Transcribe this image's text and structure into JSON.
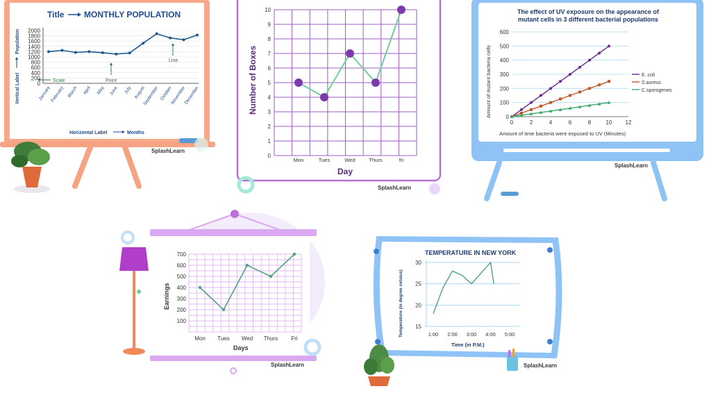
{
  "brand": "SplashLearn",
  "colors": {
    "easel1": "#f5a383",
    "line1": "#1e5a8e",
    "title1": "#1e4a8e",
    "purple": "#7c3aad",
    "green": "#6fcf97",
    "purpleLight": "#d9b3f0",
    "blueFrame": "#8fc3f5",
    "ecoli": "#6a2a90",
    "saureus": "#c0582a",
    "cspor": "#3aaa6a"
  },
  "chart_data": [
    {
      "type": "line",
      "title_label": "Title",
      "title": "MONTHLY POPULATION",
      "xlabel_prefix": "Horizontal Label",
      "xlabel": "Months",
      "ylabel_prefix": "Vertical Label",
      "ylabel": "Population",
      "categories": [
        "January",
        "February",
        "March",
        "April",
        "May",
        "June",
        "July",
        "August",
        "September",
        "October",
        "November",
        "December"
      ],
      "values": [
        1200,
        1250,
        1170,
        1200,
        1160,
        1110,
        1150,
        1520,
        1880,
        1720,
        1650,
        1830
      ],
      "ylim": [
        0,
        2000
      ],
      "yticks": [
        0,
        200,
        400,
        600,
        800,
        1000,
        1200,
        1400,
        1600,
        1800,
        2000
      ],
      "annotations": {
        "scale": "Scale",
        "point": "Point",
        "line": "Line"
      }
    },
    {
      "type": "line",
      "title": "",
      "categories": [
        "Mon",
        "Tues",
        "Wed",
        "Thurs",
        "fri"
      ],
      "values": [
        5,
        4,
        7,
        5,
        10
      ],
      "xlabel": "Day",
      "ylabel": "Number of Boxes",
      "ylim": [
        0,
        10
      ],
      "yticks": [
        0,
        1,
        2,
        3,
        4,
        5,
        6,
        7,
        8,
        9,
        10
      ]
    },
    {
      "type": "line",
      "title": "The effect of UV exposure on the appearance of mutant cells in 3 different bacterial populations",
      "title_lines": [
        "The effect of UV exposure on the appearance of",
        "mutant cells in 3 different bacterial populations"
      ],
      "xlabel": "Amount of time bacteria were exposed to UV (Minutes)",
      "ylabel": "Amount of mutant bacteria cells",
      "x": [
        0,
        1,
        2,
        3,
        4,
        5,
        6,
        7,
        8,
        9,
        10
      ],
      "series": [
        {
          "name": "E. coli",
          "values": [
            0,
            50,
            100,
            150,
            200,
            250,
            300,
            350,
            400,
            450,
            500
          ]
        },
        {
          "name": "S.aureus",
          "values": [
            0,
            25,
            50,
            75,
            100,
            125,
            150,
            175,
            200,
            225,
            250
          ]
        },
        {
          "name": "C.sporogenes",
          "values": [
            0,
            10,
            20,
            30,
            40,
            50,
            60,
            70,
            80,
            90,
            100
          ]
        }
      ],
      "xlim": [
        0,
        12
      ],
      "xticks": [
        0,
        2,
        4,
        6,
        8,
        10,
        12
      ],
      "ylim": [
        0,
        600
      ],
      "yticks": [
        0,
        100,
        200,
        300,
        400,
        500,
        600
      ],
      "legend": "right"
    },
    {
      "type": "line",
      "title": "",
      "categories": [
        "Mon",
        "Tues",
        "Wed",
        "Thurs",
        "Fri"
      ],
      "values": [
        400,
        200,
        600,
        500,
        700
      ],
      "xlabel": "Days",
      "ylabel": "Earnings",
      "ylim": [
        0,
        700
      ],
      "yticks": [
        100,
        200,
        300,
        400,
        500,
        600,
        700
      ]
    },
    {
      "type": "line",
      "title": "TEMPERATURE IN NEW YORK",
      "x": [
        1.0,
        1.5,
        2.0,
        2.5,
        3.0,
        3.5,
        4.0,
        4.17
      ],
      "values": [
        18,
        24,
        28,
        27,
        25,
        27.5,
        30,
        25
      ],
      "xticks": [
        "1:00",
        "2:00",
        "3:00",
        "4:00",
        "5:00"
      ],
      "xlim": [
        1,
        5
      ],
      "xlabel": "Time (in P.M.)",
      "ylabel": "Temperature (in degree celsius)",
      "ylim": [
        15,
        30
      ],
      "yticks": [
        15,
        20,
        25,
        30
      ]
    }
  ]
}
